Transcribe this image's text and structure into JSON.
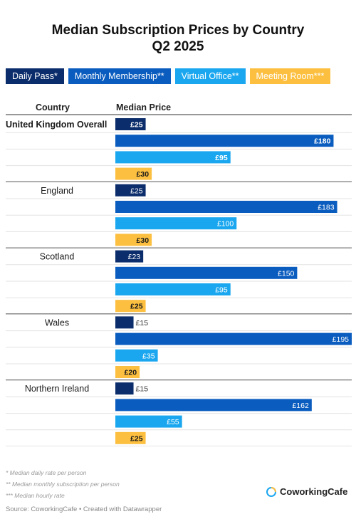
{
  "title_line1": "Median Subscription Prices by Country",
  "title_line2": "Q2 2025",
  "legend": [
    {
      "label": "Daily Pass*",
      "color": "#0b2d6b",
      "text_color": "#ffffff"
    },
    {
      "label": "Monthly Membership**",
      "color": "#0a5cbf",
      "text_color": "#ffffff"
    },
    {
      "label": "Virtual Office**",
      "color": "#1ba7ef",
      "text_color": "#ffffff"
    },
    {
      "label": "Meeting Room***",
      "color": "#fcbf3f",
      "text_color": "#ffffff"
    }
  ],
  "column_headers": {
    "country": "Country",
    "price": "Median Price"
  },
  "chart_data": {
    "type": "bar",
    "orientation": "horizontal",
    "currency": "£",
    "series": [
      {
        "name": "Daily Pass*",
        "color": "#0b2d6b"
      },
      {
        "name": "Monthly Membership**",
        "color": "#0a5cbf"
      },
      {
        "name": "Virtual Office**",
        "color": "#1ba7ef"
      },
      {
        "name": "Meeting Room***",
        "color": "#fcbf3f"
      }
    ],
    "groups": [
      {
        "country": "United Kingdom Overall",
        "bold": true,
        "values": [
          25,
          180,
          95,
          30
        ]
      },
      {
        "country": "England",
        "bold": false,
        "values": [
          25,
          183,
          100,
          30
        ]
      },
      {
        "country": "Scotland",
        "bold": false,
        "values": [
          23,
          150,
          95,
          25
        ]
      },
      {
        "country": "Wales",
        "bold": false,
        "values": [
          15,
          195,
          35,
          20
        ]
      },
      {
        "country": "Northern Ireland",
        "bold": false,
        "values": [
          15,
          162,
          55,
          25
        ]
      }
    ],
    "xlim": [
      0,
      195
    ]
  },
  "footnotes": [
    "* Median daily rate per person",
    "** Median monthly subscription per person",
    "*** Median hourly rate"
  ],
  "brand": "CoworkingCafe",
  "source": "Source: CoworkingCafe • Created with Datawrapper"
}
